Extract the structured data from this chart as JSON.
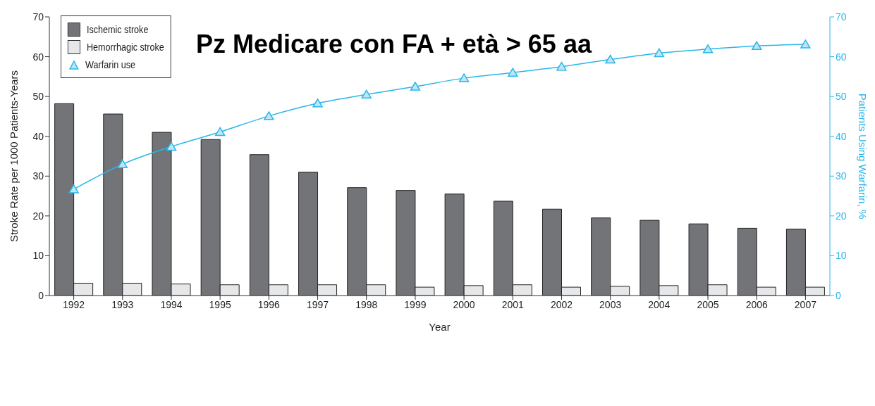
{
  "chart_data": {
    "type": "bar",
    "title": "Pz Medicare con FA + età > 65 aa",
    "xlabel": "Year",
    "ylabel": "Stroke Rate per 1000 Patients-Years",
    "y2label": "Patients Using Warfarin, %",
    "categories": [
      "1992",
      "1993",
      "1994",
      "1995",
      "1996",
      "1997",
      "1998",
      "1999",
      "2000",
      "2001",
      "2002",
      "2003",
      "2004",
      "2005",
      "2006",
      "2007"
    ],
    "series": [
      {
        "name": "Ischemic stroke",
        "color": "#737477",
        "values": [
          48.2,
          45.6,
          41.0,
          39.2,
          35.4,
          31.0,
          27.1,
          26.4,
          25.5,
          23.7,
          21.7,
          19.5,
          18.9,
          18.0,
          16.9,
          16.7
        ]
      },
      {
        "name": "Hemorrhagic stroke",
        "color": "#e6e7e8",
        "values": [
          3.1,
          3.1,
          2.9,
          2.7,
          2.7,
          2.7,
          2.7,
          2.1,
          2.5,
          2.7,
          2.1,
          2.3,
          2.5,
          2.7,
          2.1,
          2.1
        ]
      },
      {
        "name": "Warfarin use",
        "type": "line",
        "axis": "y2",
        "color": "#29b6ea",
        "values": [
          26.7,
          33.0,
          37.4,
          41.1,
          45.1,
          48.3,
          50.5,
          52.5,
          54.6,
          56.0,
          57.5,
          59.3,
          60.9,
          61.9,
          62.7,
          63.1
        ]
      }
    ],
    "ylim": [
      0,
      70
    ],
    "yticks": [
      0,
      10,
      20,
      30,
      40,
      50,
      60,
      70
    ],
    "y2lim": [
      0,
      70
    ],
    "y2ticks": [
      0,
      10,
      20,
      30,
      40,
      50,
      60,
      70
    ],
    "legend": "top left",
    "marker": "triangle",
    "grid": false
  }
}
